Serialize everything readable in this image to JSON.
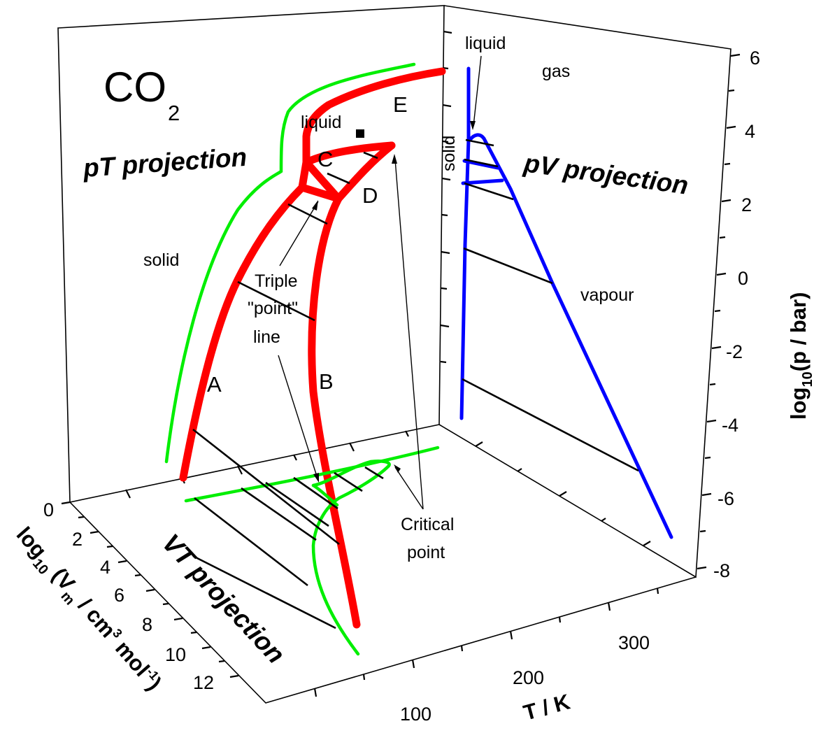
{
  "title": {
    "main": "CO",
    "subscript": "2"
  },
  "projections": {
    "pT": "pT projection",
    "pV": "pV projection",
    "VT": "VT projection"
  },
  "phase_labels": {
    "liquid_pT": "liquid",
    "solid_pT": "solid",
    "liquid_pV": "liquid",
    "gas": "gas",
    "solid_pV": "solid",
    "vapour": "vapour"
  },
  "curve_letters": {
    "A": "A",
    "B": "B",
    "C": "C",
    "D": "D",
    "E": "E"
  },
  "annotations": {
    "triple_1": "Triple",
    "triple_2": "\"point\"",
    "triple_3": "line",
    "critical_1": "Critical",
    "critical_2": "point"
  },
  "axes": {
    "p": {
      "label_pre": "log",
      "label_sub": "10",
      "label_post": "(p / bar)",
      "ticks": [
        "6",
        "4",
        "2",
        "0",
        "-2",
        "-4",
        "-6",
        "-8"
      ]
    },
    "V": {
      "label_pre": "log",
      "label_sub": "10",
      "label_mid": " (V",
      "label_sub2": "m",
      "label_mid2": " / cm",
      "label_sup": "3",
      "label_mid3": " mol",
      "label_sup2": "-1",
      "label_post": ")",
      "ticks": [
        "0",
        "2",
        "4",
        "6",
        "8",
        "10",
        "12"
      ]
    },
    "T": {
      "label": "T / K",
      "ticks": [
        "100",
        "200",
        "300"
      ]
    }
  },
  "colors": {
    "pT_curve": "#ff0000",
    "pV_curve": "#0000ff",
    "VT_curve": "#00ee00",
    "tie_lines": "#000000",
    "frame": "#000000"
  }
}
